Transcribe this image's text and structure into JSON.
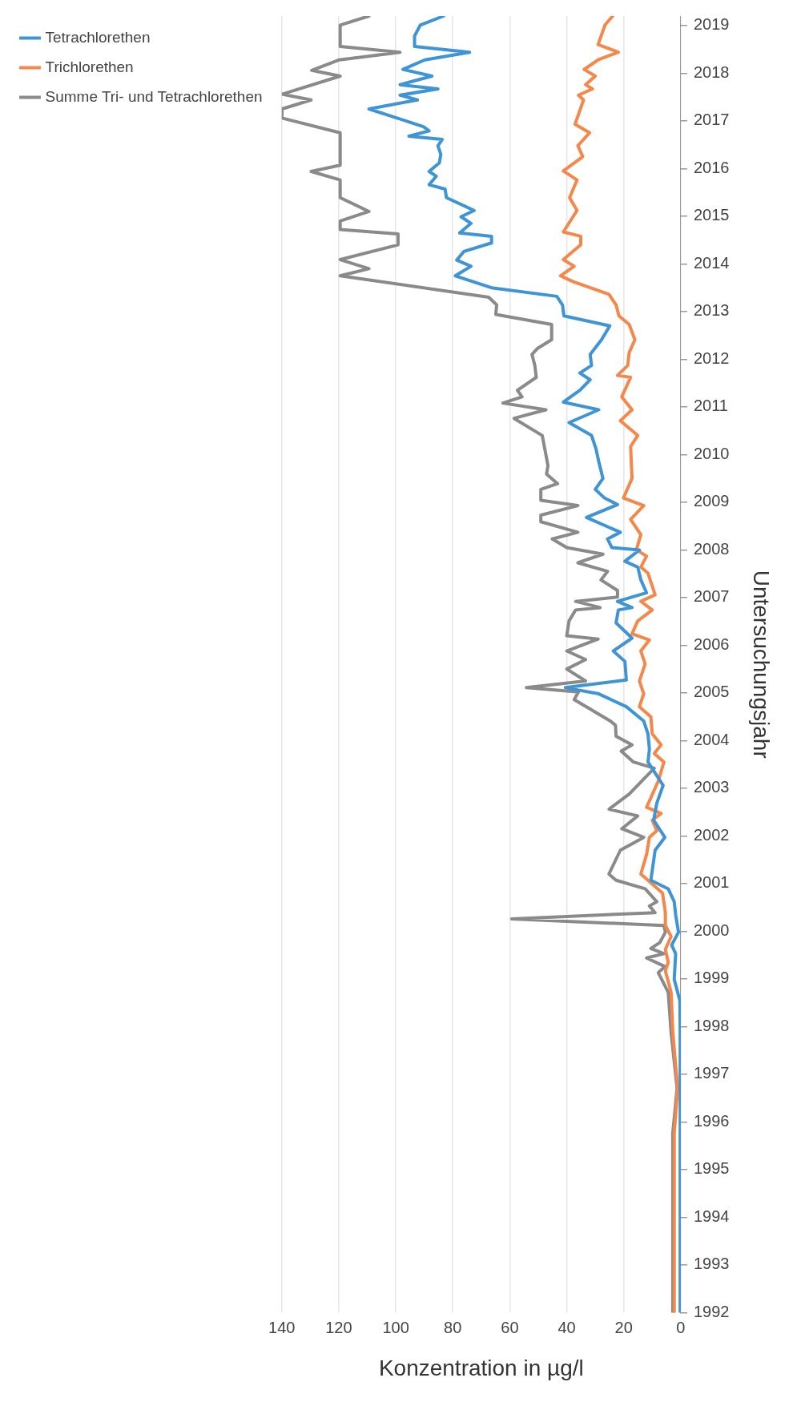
{
  "chart_data": {
    "type": "line",
    "orientation": "horizontal",
    "xlabel": "Konzentration in µg/l",
    "ylabel": "Untersuchungsjahr",
    "ylim": [
      1992,
      2019.2
    ],
    "yticks": [
      1992,
      1993,
      1994,
      1995,
      1996,
      1997,
      1998,
      1999,
      2000,
      2001,
      2002,
      2003,
      2004,
      2005,
      2006,
      2007,
      2008,
      2009,
      2010,
      2011,
      2012,
      2013,
      2014,
      2015,
      2016,
      2017,
      2018,
      2019
    ],
    "xlim": [
      140,
      0
    ],
    "xticks": [
      0,
      20,
      40,
      60,
      80,
      100,
      120,
      140
    ],
    "grid": "x",
    "legend": "left",
    "marker": "none",
    "line_style": "solid",
    "series": [
      {
        "name": "Tetrachlorethen",
        "color": "#3f94d6",
        "x": [
          1992,
          1997.88,
          1998.54,
          1998.99,
          1999.53,
          1999.71,
          1999.98,
          2000.35,
          2000.62,
          2000.89,
          2001.07,
          2001.7,
          2001.97,
          2002.33,
          2002.69,
          2003.06,
          2003.55,
          2003.82,
          2004.14,
          2004.41,
          2004.71,
          2004.98,
          2005.11,
          2005.27,
          2005.66,
          2005.88,
          2006.15,
          2006.47,
          2006.74,
          2006.79,
          2006.92,
          2007.1,
          2007.37,
          2007.64,
          2007.76,
          2008.0,
          2008.05,
          2008.23,
          2008.37,
          2008.68,
          2008.95,
          2009.09,
          2009.27,
          2009.5,
          2009.86,
          2010.13,
          2010.4,
          2010.67,
          2010.94,
          2011.1,
          2011.35,
          2011.57,
          2011.71,
          2011.87,
          2012.1,
          2012.41,
          2012.7,
          2012.91,
          2013.14,
          2013.32,
          2013.5,
          2013.75,
          2013.95,
          2014.08,
          2014.26,
          2014.44,
          2014.58,
          2014.65,
          2014.85,
          2014.99,
          2015.12,
          2015.39,
          2015.57,
          2015.66,
          2015.84,
          2015.94,
          2016.12,
          2016.3,
          2016.48,
          2016.61,
          2016.68,
          2016.79,
          2016.88,
          2017.25,
          2017.44,
          2017.54,
          2017.67,
          2017.76,
          2017.94,
          2018.08,
          2018.28,
          2018.44,
          2018.56,
          2018.78,
          2019.01,
          2019.2
        ],
        "values": [
          0.2,
          0.2,
          0.3,
          2.3,
          1.8,
          3.2,
          0.8,
          1.8,
          2.3,
          4.4,
          10.5,
          9.0,
          5.6,
          9.5,
          8.4,
          6.2,
          11.5,
          11.0,
          11.5,
          13.0,
          19.1,
          28.8,
          40.5,
          19.1,
          19.6,
          23.7,
          17.1,
          22.7,
          21.9,
          17.1,
          22.2,
          12.0,
          14.0,
          15.1,
          19.6,
          14.5,
          24.2,
          25.7,
          21.2,
          33.1,
          22.2,
          26.8,
          30.0,
          27.3,
          28.8,
          29.8,
          31.3,
          39.2,
          28.8,
          41.2,
          35.4,
          31.8,
          35.4,
          31.3,
          31.8,
          27.8,
          24.9,
          41.0,
          41.5,
          43.5,
          66.4,
          79.1,
          73.6,
          78.6,
          76.1,
          66.4,
          66.4,
          77.6,
          73.6,
          77.1,
          72.5,
          82.2,
          82.7,
          88.3,
          85.8,
          88.3,
          84.7,
          84.2,
          85.2,
          83.7,
          95.4,
          88.3,
          90.3,
          109.4,
          92.4,
          98.5,
          85.2,
          98.5,
          87.3,
          97.5,
          89.8,
          74.1,
          93.4,
          93.4,
          91.4,
          83.2
        ]
      },
      {
        "name": "Trichlorethen",
        "color": "#f4884a",
        "x": [
          1992,
          1995.76,
          1996.71,
          1997.88,
          1998.72,
          1999.17,
          1999.35,
          1999.62,
          1999.89,
          2000.12,
          2000.39,
          2000.8,
          2001.2,
          2001.61,
          2001.97,
          2002.11,
          2002.33,
          2002.47,
          2002.6,
          2003.15,
          2003.55,
          2003.73,
          2003.91,
          2004.14,
          2004.5,
          2004.71,
          2004.98,
          2005.25,
          2005.61,
          2005.88,
          2006.11,
          2006.24,
          2006.51,
          2006.74,
          2006.92,
          2007.06,
          2007.51,
          2007.64,
          2007.87,
          2008.0,
          2008.32,
          2008.64,
          2008.93,
          2009.09,
          2009.5,
          2010.17,
          2010.4,
          2010.71,
          2010.94,
          2011.21,
          2011.62,
          2011.66,
          2011.87,
          2012.14,
          2012.41,
          2012.73,
          2012.91,
          2013.14,
          2013.36,
          2013.63,
          2013.75,
          2013.95,
          2014.09,
          2014.4,
          2014.58,
          2014.67,
          2015.12,
          2015.39,
          2015.76,
          2015.95,
          2016.25,
          2016.48,
          2016.75,
          2016.93,
          2017.44,
          2017.54,
          2017.67,
          2017.76,
          2017.94,
          2018.08,
          2018.28,
          2018.44,
          2018.6,
          2019.01,
          2019.2
        ],
        "values": [
          2.3,
          2.3,
          1.1,
          2.8,
          3.4,
          5.4,
          4.4,
          5.4,
          3.4,
          5.4,
          5.4,
          6.4,
          14.0,
          12.0,
          11.0,
          8.4,
          10.0,
          6.9,
          12.0,
          7.9,
          5.9,
          9.3,
          6.9,
          10.0,
          10.5,
          14.5,
          13.0,
          14.5,
          12.5,
          14.0,
          11.0,
          17.1,
          15.1,
          10.0,
          14.0,
          9.0,
          11.5,
          14.0,
          12.0,
          15.6,
          14.0,
          17.6,
          13.0,
          20.1,
          17.1,
          17.6,
          15.1,
          21.2,
          17.1,
          20.7,
          17.6,
          22.2,
          18.6,
          18.1,
          16.1,
          18.1,
          21.7,
          22.7,
          25.2,
          37.9,
          42.2,
          37.4,
          41.2,
          35.1,
          35.1,
          41.2,
          36.4,
          39.0,
          36.4,
          41.2,
          34.4,
          36.1,
          32.0,
          37.1,
          34.1,
          35.9,
          31.0,
          33.4,
          30.0,
          33.9,
          29.0,
          21.9,
          29.0,
          26.6,
          23.9
        ]
      },
      {
        "name": "Summe Tri- und Tetrachlorethen",
        "color": "#8a8a8a",
        "x": [
          1992,
          1995.76,
          1996.71,
          1997.88,
          1998.72,
          1999.13,
          1999.26,
          1999.44,
          1999.53,
          1999.64,
          1999.76,
          1999.98,
          2000.12,
          2000.26,
          2000.39,
          2000.53,
          2000.62,
          2000.89,
          2001.07,
          2001.2,
          2001.7,
          2001.97,
          2002.15,
          2002.42,
          2002.56,
          2002.88,
          2003.42,
          2003.55,
          2003.78,
          2003.91,
          2004.09,
          2004.32,
          2004.41,
          2004.86,
          2005.02,
          2005.11,
          2005.25,
          2005.5,
          2005.7,
          2005.88,
          2006.13,
          2006.2,
          2006.51,
          2006.74,
          2006.79,
          2006.92,
          2007.01,
          2007.15,
          2007.37,
          2007.55,
          2007.73,
          2007.91,
          2008.05,
          2008.23,
          2008.37,
          2008.59,
          2008.73,
          2008.93,
          2009.04,
          2009.27,
          2009.39,
          2009.59,
          2009.77,
          2010.4,
          2010.76,
          2010.94,
          2011.08,
          2011.21,
          2011.35,
          2011.62,
          2011.87,
          2012.1,
          2012.23,
          2012.41,
          2012.73,
          2012.94,
          2013.14,
          2013.3,
          2013.75,
          2013.9,
          2014.09,
          2014.4,
          2014.63,
          2014.72,
          2014.9,
          2015.1,
          2015.39,
          2015.76,
          2015.94,
          2016.07,
          2016.75,
          2017.06,
          2017.25,
          2017.44,
          2017.56,
          2017.94,
          2018.06,
          2018.28,
          2018.44,
          2018.56,
          2019.01,
          2019.2
        ],
        "values": [
          2.8,
          2.8,
          1.3,
          3.4,
          4.4,
          7.9,
          5.6,
          12.0,
          5.9,
          10.5,
          7.4,
          5.4,
          5.9,
          59.3,
          9.0,
          11.0,
          8.4,
          12.5,
          22.7,
          25.2,
          21.2,
          13.0,
          20.7,
          15.1,
          25.2,
          18.1,
          9.3,
          16.6,
          20.9,
          17.1,
          22.7,
          22.9,
          24.7,
          37.4,
          35.9,
          54.2,
          33.4,
          40.0,
          33.4,
          40.0,
          29.0,
          40.0,
          39.2,
          36.9,
          28.3,
          36.9,
          22.2,
          22.2,
          28.0,
          25.7,
          36.1,
          27.3,
          40.0,
          45.1,
          36.1,
          49.1,
          49.1,
          36.1,
          49.1,
          49.1,
          43.2,
          47.1,
          46.6,
          48.6,
          58.5,
          47.3,
          62.4,
          55.7,
          57.3,
          50.7,
          51.2,
          52.2,
          50.2,
          45.3,
          45.3,
          64.9,
          64.6,
          67.4,
          119.5,
          109.4,
          119.5,
          99.2,
          99.2,
          119.5,
          119.5,
          109.4,
          119.5,
          119.5,
          129.7,
          119.5,
          119.5,
          139.9,
          139.9,
          129.7,
          139.9,
          119.5,
          129.5,
          119.8,
          98.5,
          119.5,
          119.5,
          109.4
        ]
      }
    ]
  }
}
